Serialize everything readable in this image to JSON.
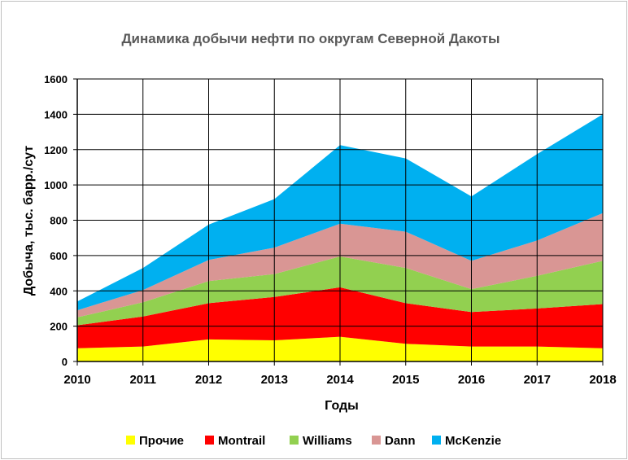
{
  "chart_data": {
    "type": "area",
    "stacked": true,
    "title": "Динамика добычи нефти по округам Северной Дакоты",
    "xlabel": "Годы",
    "ylabel": "Добыча, тыс. барр./сут",
    "ylim": [
      0,
      1600
    ],
    "yticks": [
      0,
      200,
      400,
      600,
      800,
      1000,
      1200,
      1400,
      1600
    ],
    "categories": [
      "2010",
      "2011",
      "2012",
      "2013",
      "2014",
      "2015",
      "2016",
      "2017",
      "2018"
    ],
    "grid": true,
    "legend_position": "bottom",
    "series": [
      {
        "name": "Прочие",
        "color": "#FFFF00",
        "values": [
          75,
          85,
          125,
          120,
          140,
          100,
          85,
          85,
          75
        ]
      },
      {
        "name": "Montrail",
        "color": "#FF0000",
        "values": [
          130,
          170,
          205,
          245,
          280,
          230,
          195,
          215,
          250
        ]
      },
      {
        "name": "Williams",
        "color": "#92D050",
        "values": [
          45,
          80,
          125,
          130,
          175,
          200,
          130,
          185,
          245
        ]
      },
      {
        "name": "Dann",
        "color": "#D99694",
        "values": [
          40,
          70,
          120,
          150,
          185,
          205,
          160,
          200,
          270
        ]
      },
      {
        "name": "McKenzie",
        "color": "#00B0F0",
        "values": [
          50,
          125,
          200,
          275,
          445,
          415,
          365,
          490,
          560
        ]
      }
    ]
  }
}
